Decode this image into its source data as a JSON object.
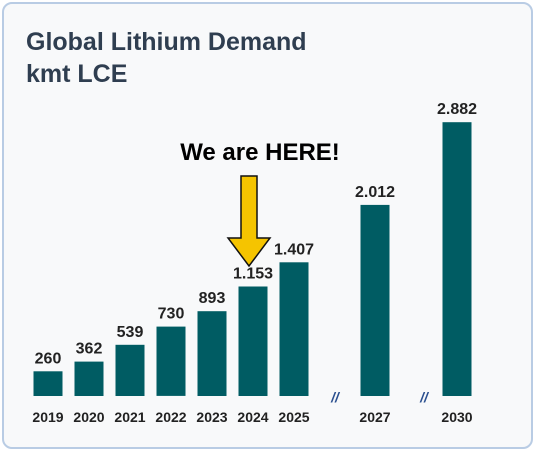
{
  "chart_data": {
    "type": "bar",
    "title": "Global Lithium Demand",
    "subtitle": "kmt LCE",
    "categories": [
      "2019",
      "2020",
      "2021",
      "2022",
      "2023",
      "2024",
      "2025",
      "2027",
      "2030"
    ],
    "values": [
      260,
      362,
      539,
      730,
      893,
      1153,
      1407,
      2012,
      2882
    ],
    "value_labels": [
      "260",
      "362",
      "539",
      "730",
      "893",
      "1.153",
      "1.407",
      "2.012",
      "2.882"
    ],
    "axis_break_symbol": "//",
    "axis_breaks_after": [
      "2025",
      "2027"
    ],
    "ylim": [
      0,
      3000
    ],
    "grid": false,
    "legend": "none",
    "annotation": {
      "text": "We are HERE!",
      "points_to": "2024",
      "arrow_color": "#f5c400"
    },
    "bar_color": "#005c63",
    "text_color": "#222222"
  },
  "colors": {
    "card_background": "#f8f9fa",
    "card_border": "#b9cce4",
    "title": "#2f3e50"
  }
}
